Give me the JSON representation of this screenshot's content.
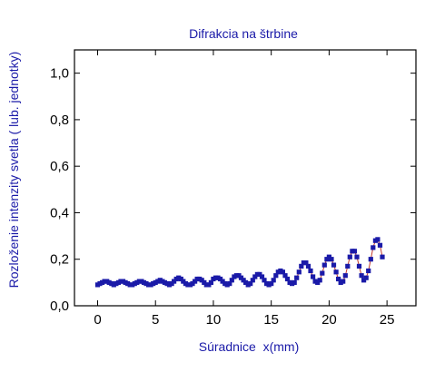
{
  "chart_data": {
    "type": "scatter",
    "title": "Difrakcia na štrbine",
    "xlabel": "Súradnice  x(mm)",
    "ylabel": "Rozloženie intenzity svetla ( lub. jednotky)",
    "xlim": [
      -2,
      27.5
    ],
    "ylim": [
      0,
      1.1
    ],
    "x_ticks": [
      0,
      5,
      10,
      15,
      20,
      25
    ],
    "x_tick_labels": [
      "0",
      "5",
      "10",
      "15",
      "20",
      "25"
    ],
    "y_ticks": [
      0.0,
      0.2,
      0.4,
      0.6,
      0.8,
      1.0
    ],
    "y_tick_labels": [
      "0,0",
      "0,2",
      "0,4",
      "0,6",
      "0,8",
      "1,0"
    ],
    "grid": false,
    "legend": "none",
    "marker_color": "#1a1aa8",
    "fit_line_color": "#c0392b",
    "series": [
      {
        "x": [
          0.0,
          0.2,
          0.4,
          0.6,
          0.8,
          1.0,
          1.2,
          1.4,
          1.6,
          1.8,
          2.0,
          2.2,
          2.4,
          2.6,
          2.8,
          3.0,
          3.2,
          3.4,
          3.6,
          3.8,
          4.0,
          4.2,
          4.4,
          4.6,
          4.8,
          5.0,
          5.2,
          5.4,
          5.6,
          5.8,
          6.0,
          6.2,
          6.4,
          6.6,
          6.8,
          7.0,
          7.2,
          7.4,
          7.6,
          7.8,
          8.0,
          8.2,
          8.4,
          8.6,
          8.8,
          9.0,
          9.2,
          9.4,
          9.6,
          9.8,
          10.0,
          10.2,
          10.4,
          10.6,
          10.8,
          11.0,
          11.2,
          11.4,
          11.6,
          11.8,
          12.0,
          12.2,
          12.4,
          12.6,
          12.8,
          13.0,
          13.2,
          13.4,
          13.6,
          13.8,
          14.0,
          14.2,
          14.4,
          14.6,
          14.8,
          15.0,
          15.2,
          15.4,
          15.6,
          15.8,
          16.0,
          16.2,
          16.4,
          16.6,
          16.8,
          17.0,
          17.2,
          17.4,
          17.6,
          17.8,
          18.0,
          18.2,
          18.4,
          18.6,
          18.8,
          19.0,
          19.2,
          19.4,
          19.6,
          19.8,
          20.0,
          20.2,
          20.4,
          20.6,
          20.8,
          21.0,
          21.2,
          21.4,
          21.6,
          21.8,
          22.0,
          22.2,
          22.4,
          22.6,
          22.8,
          23.0,
          23.2,
          23.4,
          23.6,
          23.8,
          24.0,
          24.2,
          24.4,
          24.6
        ],
        "y": [
          0.09,
          0.095,
          0.1,
          0.105,
          0.105,
          0.1,
          0.095,
          0.09,
          0.095,
          0.1,
          0.105,
          0.105,
          0.1,
          0.095,
          0.09,
          0.09,
          0.095,
          0.1,
          0.105,
          0.105,
          0.1,
          0.095,
          0.09,
          0.09,
          0.095,
          0.1,
          0.105,
          0.11,
          0.105,
          0.1,
          0.095,
          0.09,
          0.095,
          0.105,
          0.115,
          0.12,
          0.115,
          0.105,
          0.095,
          0.09,
          0.09,
          0.095,
          0.105,
          0.115,
          0.115,
          0.11,
          0.1,
          0.09,
          0.09,
          0.1,
          0.115,
          0.12,
          0.12,
          0.115,
          0.105,
          0.095,
          0.09,
          0.095,
          0.11,
          0.125,
          0.13,
          0.13,
          0.12,
          0.11,
          0.1,
          0.09,
          0.095,
          0.11,
          0.125,
          0.135,
          0.135,
          0.125,
          0.11,
          0.095,
          0.09,
          0.095,
          0.11,
          0.13,
          0.145,
          0.15,
          0.145,
          0.13,
          0.115,
          0.1,
          0.095,
          0.1,
          0.12,
          0.145,
          0.17,
          0.185,
          0.185,
          0.17,
          0.15,
          0.125,
          0.105,
          0.1,
          0.11,
          0.14,
          0.175,
          0.2,
          0.21,
          0.2,
          0.175,
          0.145,
          0.115,
          0.1,
          0.105,
          0.13,
          0.17,
          0.21,
          0.235,
          0.235,
          0.21,
          0.17,
          0.13,
          0.11,
          0.12,
          0.15,
          0.2,
          0.25,
          0.28,
          0.285,
          0.26,
          0.21
        ]
      }
    ]
  }
}
